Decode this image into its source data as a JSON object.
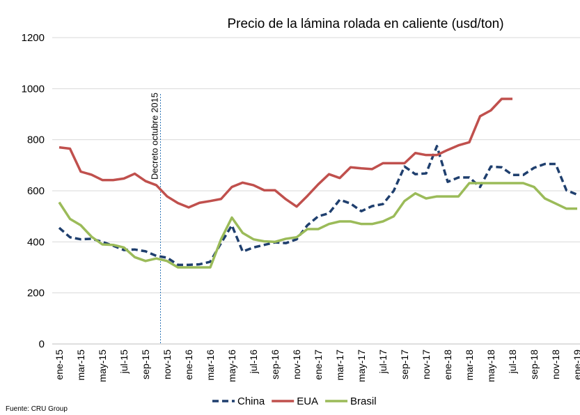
{
  "chart_data": {
    "type": "line",
    "title": "Precio de la lámina rolada en caliente (usd/ton)",
    "annotation": "Decreto octubre 2015",
    "source": "Fuente: CRU Group",
    "categories": [
      "ene-15",
      null,
      "mar-15",
      null,
      "may-15",
      null,
      "jul-15",
      null,
      "sep-15",
      null,
      "nov-15",
      null,
      "ene-16",
      null,
      "mar-16",
      null,
      "may-16",
      null,
      "jul-16",
      null,
      "sep-16",
      null,
      "nov-16",
      null,
      "ene-17",
      null,
      "mar-17",
      null,
      "may-17",
      null,
      "jul-17",
      null,
      "sep-17",
      null,
      "nov-17",
      null,
      "ene-18",
      null,
      "mar-18",
      null,
      "may-18",
      null,
      "jul-18",
      null,
      "sep-18",
      null,
      "nov-18",
      null,
      "ene-19"
    ],
    "series": [
      {
        "name": "China",
        "color": "#1f3f6e",
        "dashed": true,
        "values": [
          455,
          418,
          410,
          412,
          400,
          385,
          368,
          370,
          363,
          345,
          338,
          310,
          310,
          312,
          322,
          395,
          465,
          362,
          378,
          388,
          398,
          395,
          410,
          465,
          500,
          512,
          565,
          550,
          520,
          540,
          548,
          600,
          695,
          665,
          668,
          775,
          635,
          652,
          652,
          615,
          695,
          692,
          662,
          662,
          690,
          705,
          705,
          602,
          585
        ]
      },
      {
        "name": "EUA",
        "color": "#c0504d",
        "dashed": false,
        "values": [
          770,
          765,
          675,
          663,
          642,
          642,
          648,
          667,
          638,
          622,
          578,
          552,
          535,
          553,
          560,
          568,
          615,
          632,
          622,
          602,
          602,
          567,
          538,
          580,
          625,
          665,
          650,
          692,
          688,
          685,
          708,
          708,
          708,
          748,
          740,
          740,
          760,
          778,
          790,
          892,
          915,
          960,
          960,
          null,
          null,
          null,
          null,
          null,
          null
        ]
      },
      {
        "name": "Brasil",
        "color": "#9bbb59",
        "dashed": false,
        "values": [
          555,
          490,
          465,
          420,
          390,
          388,
          378,
          340,
          325,
          335,
          325,
          300,
          300,
          300,
          300,
          410,
          495,
          435,
          410,
          402,
          400,
          412,
          418,
          450,
          450,
          470,
          480,
          480,
          470,
          470,
          480,
          500,
          560,
          590,
          570,
          578,
          578,
          578,
          630,
          630,
          630,
          630,
          630,
          630,
          615,
          570,
          550,
          530,
          530
        ]
      }
    ],
    "ylim": [
      0,
      1200
    ],
    "yticks": [
      0,
      200,
      400,
      600,
      800,
      1000,
      1200
    ],
    "grid": true
  }
}
